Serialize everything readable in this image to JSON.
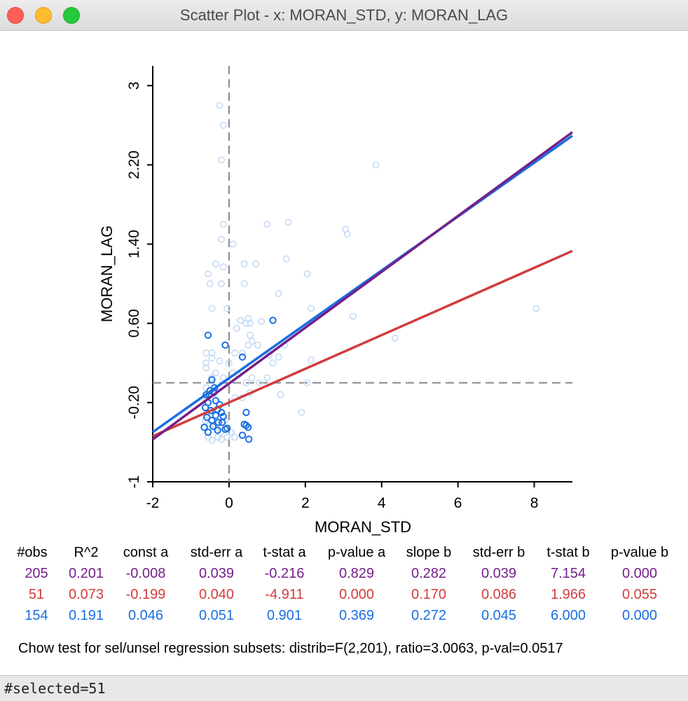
{
  "window": {
    "title": "Scatter Plot - x: MORAN_STD, y: MORAN_LAG"
  },
  "colors": {
    "all": "#74208a",
    "selected": "#d13c3c",
    "unselected": "#1a6fe0",
    "faint": "#c6daf5"
  },
  "chart_data": {
    "type": "scatter",
    "xlabel": "MORAN_STD",
    "ylabel": "MORAN_LAG",
    "xlim": [
      -2,
      9
    ],
    "ylim": [
      -1,
      3.2
    ],
    "x_ticks": [
      -2,
      0,
      2,
      4,
      6,
      8
    ],
    "x_tick_labels": [
      "-2",
      "0",
      "2",
      "4",
      "6",
      "8"
    ],
    "y_ticks": [
      -1,
      -0.2,
      0.6,
      1.4,
      2.2,
      3
    ],
    "y_tick_labels": [
      "-1",
      "-0.20",
      "0.60",
      "1.40",
      "2.20",
      "3"
    ],
    "reference_lines": {
      "x": 0,
      "y": 0
    },
    "regression_lines": [
      {
        "name": "all",
        "intercept": -0.008,
        "slope": 0.282
      },
      {
        "name": "selected",
        "intercept": -0.199,
        "slope": 0.17
      },
      {
        "name": "unselected",
        "intercept": 0.046,
        "slope": 0.272
      }
    ],
    "series": [
      {
        "name": "selected",
        "points": [
          [
            -0.55,
            0.48
          ],
          [
            -0.1,
            0.38
          ],
          [
            0.35,
            0.26
          ],
          [
            1.15,
            0.63
          ],
          [
            -0.45,
            0.03
          ],
          [
            -0.6,
            -0.12
          ],
          [
            -0.5,
            -0.08
          ],
          [
            -0.4,
            -0.1
          ],
          [
            -0.35,
            -0.18
          ],
          [
            -0.55,
            -0.2
          ],
          [
            -0.62,
            -0.25
          ],
          [
            -0.48,
            -0.28
          ],
          [
            -0.3,
            -0.27
          ],
          [
            -0.25,
            -0.22
          ],
          [
            -0.2,
            -0.3
          ],
          [
            -0.58,
            -0.35
          ],
          [
            -0.45,
            -0.38
          ],
          [
            -0.35,
            -0.33
          ],
          [
            -0.28,
            -0.4
          ],
          [
            -0.18,
            -0.4
          ],
          [
            -0.65,
            -0.45
          ],
          [
            -0.55,
            -0.5
          ],
          [
            -0.42,
            -0.44
          ],
          [
            -0.3,
            -0.48
          ],
          [
            -0.1,
            -0.47
          ],
          [
            0.45,
            -0.3
          ],
          [
            0.45,
            -0.43
          ],
          [
            0.5,
            -0.45
          ],
          [
            0.35,
            -0.53
          ],
          [
            0.52,
            -0.57
          ],
          [
            -0.52,
            -0.12
          ],
          [
            -0.38,
            -0.05
          ],
          [
            -0.15,
            -0.34
          ],
          [
            -0.05,
            -0.46
          ],
          [
            0.4,
            -0.42
          ]
        ]
      },
      {
        "name": "unselected",
        "points": [
          [
            -0.25,
            2.8
          ],
          [
            -0.15,
            2.6
          ],
          [
            -0.2,
            2.25
          ],
          [
            -0.15,
            1.6
          ],
          [
            -0.2,
            1.45
          ],
          [
            1.0,
            1.6
          ],
          [
            1.55,
            1.62
          ],
          [
            3.05,
            1.55
          ],
          [
            3.1,
            1.5
          ],
          [
            3.85,
            2.2
          ],
          [
            -0.55,
            1.1
          ],
          [
            -0.35,
            1.2
          ],
          [
            -0.15,
            1.17
          ],
          [
            0.4,
            1.2
          ],
          [
            0.7,
            1.2
          ],
          [
            1.5,
            1.25
          ],
          [
            0.1,
            1.4
          ],
          [
            2.05,
            1.1
          ],
          [
            -0.5,
            1.0
          ],
          [
            -0.2,
            1.0
          ],
          [
            0.4,
            1.0
          ],
          [
            1.3,
            0.9
          ],
          [
            -0.45,
            0.75
          ],
          [
            -0.05,
            0.75
          ],
          [
            2.15,
            0.75
          ],
          [
            3.25,
            0.67
          ],
          [
            8.05,
            0.75
          ],
          [
            0.3,
            0.63
          ],
          [
            0.5,
            0.65
          ],
          [
            0.45,
            0.6
          ],
          [
            0.85,
            0.62
          ],
          [
            0.55,
            0.6
          ],
          [
            0.2,
            0.55
          ],
          [
            4.35,
            0.45
          ],
          [
            0.55,
            0.48
          ],
          [
            0.6,
            0.42
          ],
          [
            0.75,
            0.38
          ],
          [
            -0.6,
            0.3
          ],
          [
            -0.45,
            0.3
          ],
          [
            -0.25,
            0.22
          ],
          [
            -0.6,
            0.2
          ],
          [
            -0.45,
            0.25
          ],
          [
            0.15,
            0.3
          ],
          [
            0.35,
            0.3
          ],
          [
            0.5,
            0.38
          ],
          [
            1.45,
            0.38
          ],
          [
            1.05,
            0.28
          ],
          [
            1.15,
            0.2
          ],
          [
            1.3,
            0.26
          ],
          [
            2.15,
            0.23
          ],
          [
            -0.6,
            0.15
          ],
          [
            -0.35,
            0.1
          ],
          [
            -0.45,
            0.05
          ],
          [
            -0.15,
            0.05
          ],
          [
            0.0,
            0.2
          ],
          [
            0.1,
            0.1
          ],
          [
            0.25,
            0.08
          ],
          [
            0.45,
            0.0
          ],
          [
            0.6,
            0.05
          ],
          [
            0.8,
            0.0
          ],
          [
            1.0,
            0.05
          ],
          [
            2.05,
            0.0
          ],
          [
            0.55,
            -0.1
          ],
          [
            0.35,
            -0.15
          ],
          [
            1.35,
            -0.12
          ],
          [
            1.9,
            -0.3
          ],
          [
            0.15,
            -0.15
          ],
          [
            -0.6,
            -0.32
          ],
          [
            -0.65,
            -0.45
          ],
          [
            -0.55,
            -0.55
          ],
          [
            -0.45,
            -0.58
          ],
          [
            -0.3,
            -0.55
          ],
          [
            -0.2,
            -0.57
          ],
          [
            -0.05,
            -0.55
          ],
          [
            0.15,
            -0.55
          ],
          [
            0.05,
            -0.5
          ],
          [
            -0.62,
            -0.38
          ],
          [
            -0.5,
            -0.42
          ],
          [
            -0.35,
            -0.45
          ],
          [
            -0.22,
            -0.5
          ],
          [
            -0.1,
            -0.38
          ],
          [
            -0.6,
            -0.05
          ],
          [
            -0.6,
            -0.18
          ]
        ]
      }
    ]
  },
  "stats": {
    "headers": [
      "#obs",
      "R^2",
      "const a",
      "std-err a",
      "t-stat a",
      "p-value a",
      "slope b",
      "std-err b",
      "t-stat b",
      "p-value b"
    ],
    "rows": [
      [
        "205",
        "0.201",
        "-0.008",
        "0.039",
        "-0.216",
        "0.829",
        "0.282",
        "0.039",
        "7.154",
        "0.000"
      ],
      [
        "51",
        "0.073",
        "-0.199",
        "0.040",
        "-4.911",
        "0.000",
        "0.170",
        "0.086",
        "1.966",
        "0.055"
      ],
      [
        "154",
        "0.191",
        "0.046",
        "0.051",
        "0.901",
        "0.369",
        "0.272",
        "0.045",
        "6.000",
        "0.000"
      ]
    ],
    "chow": "Chow test for sel/unsel regression subsets: distrib=F(2,201), ratio=3.0063, p-val=0.0517"
  },
  "status": {
    "text": "#selected=51"
  }
}
